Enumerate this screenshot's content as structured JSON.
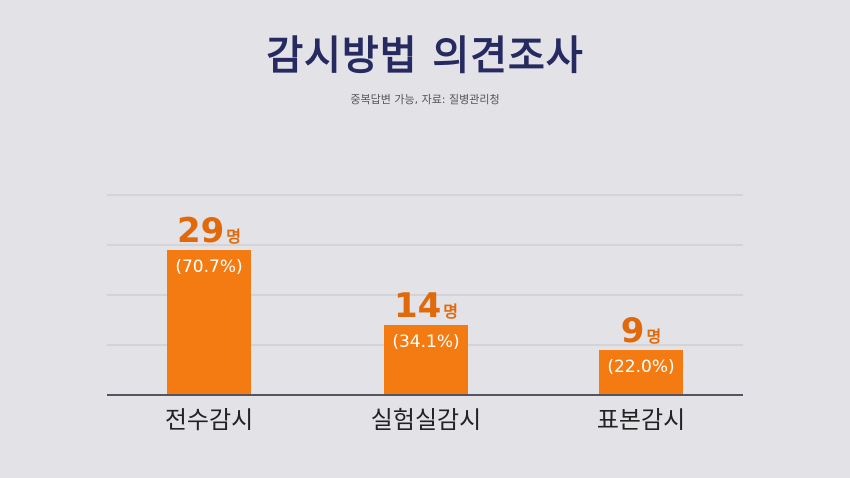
{
  "title": "감시방법 의견조사",
  "subtitle": "중복답변 가능, 자료: 질병관리청",
  "colors": {
    "background": "#e3e3e7",
    "title": "#272a60",
    "bar": "#f47a12",
    "value_text": "#e0690b",
    "axis": "#55555f",
    "grid": "#c4c4ca",
    "category_text": "#222222"
  },
  "chart_data": {
    "type": "bar",
    "title": "감시방법 의견조사",
    "subtitle": "중복답변 가능, 자료: 질병관리청",
    "categories": [
      "전수감시",
      "실험실감시",
      "표본감시"
    ],
    "values": [
      29,
      14,
      9
    ],
    "value_labels": [
      "29",
      "14",
      "9"
    ],
    "value_unit": "명",
    "percent_labels": [
      "(70.7%)",
      "(34.1%)",
      "(22.0%)"
    ],
    "percentages": [
      70.7,
      34.1,
      22.0
    ],
    "ylim": [
      0,
      40
    ],
    "grid": true,
    "legend": "none"
  }
}
